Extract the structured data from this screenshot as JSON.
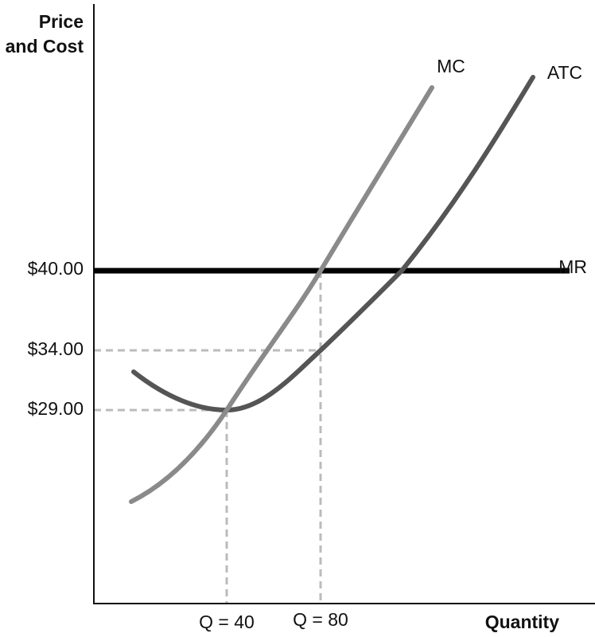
{
  "axes": {
    "y_label_line1": "Price",
    "y_label_line2": "and Cost",
    "x_label": "Quantity"
  },
  "price_labels": [
    "$40.00",
    "$34.00",
    "$29.00"
  ],
  "quantity_labels": [
    "Q = 40",
    "Q = 80"
  ],
  "curves": {
    "mc": "MC",
    "atc": "ATC",
    "mr": "MR"
  }
}
